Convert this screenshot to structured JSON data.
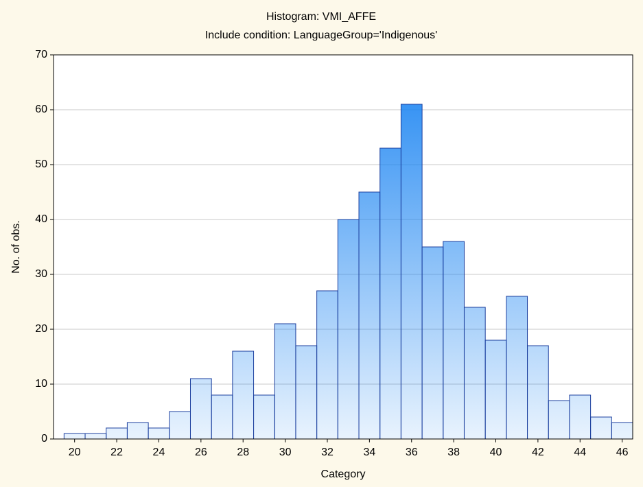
{
  "chart_data": {
    "type": "histogram",
    "title": "Histogram: VMI_AFFE",
    "subtitle": "Include condition: LanguageGroup='Indigenous'",
    "x_label": "Category",
    "y_label": "No. of obs.",
    "bins": [
      19.5,
      20.5,
      21.5,
      22.5,
      23.5,
      24.5,
      25.5,
      26.5,
      27.5,
      28.5,
      29.5,
      30.5,
      31.5,
      32.5,
      33.5,
      34.5,
      35.5,
      36.5,
      37.5,
      38.5,
      39.5,
      40.5,
      41.5,
      42.5,
      43.5,
      44.5,
      45.5,
      46.5
    ],
    "values": [
      1,
      1,
      2,
      3,
      2,
      5,
      11,
      8,
      16,
      8,
      21,
      17,
      27,
      40,
      45,
      53,
      61,
      35,
      36,
      24,
      18,
      26,
      17,
      7,
      8,
      4,
      3
    ],
    "color": "#1e86f2",
    "edge_color": "#1c3f9e",
    "xlim": [
      19,
      46.5
    ],
    "xticks": [
      20,
      22,
      24,
      26,
      28,
      30,
      32,
      34,
      36,
      38,
      40,
      42,
      44,
      46
    ],
    "ylim": [
      0,
      70
    ],
    "yticks": [
      0,
      10,
      20,
      30,
      40,
      50,
      60,
      70
    ],
    "grid": true
  }
}
